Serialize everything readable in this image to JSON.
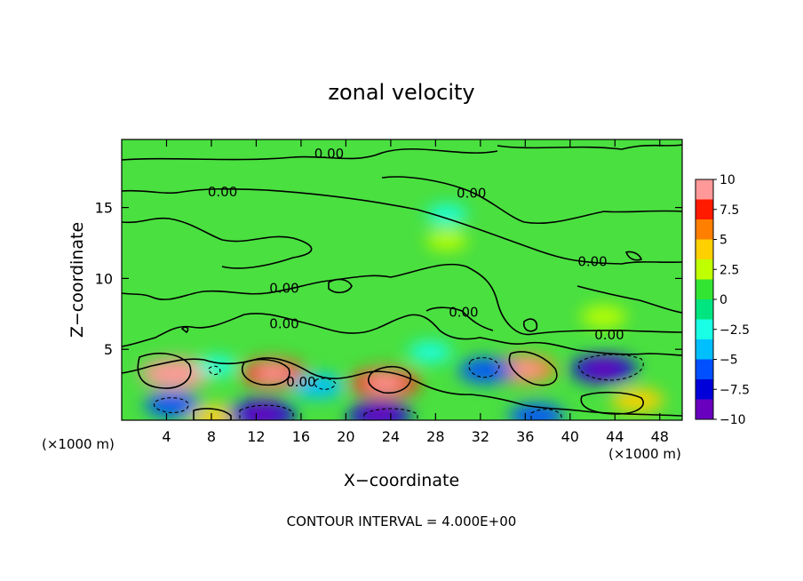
{
  "chart_data": {
    "type": "heatmap",
    "title": "zonal velocity",
    "xlabel": "X−coordinate",
    "ylabel": "Z−coordinate",
    "x_unit": "(×1000 m)",
    "x_unit_right": "(×1000 m)",
    "xlim": [
      0,
      50
    ],
    "ylim": [
      0,
      19.8
    ],
    "x_ticks": [
      4,
      8,
      12,
      16,
      20,
      24,
      28,
      32,
      36,
      40,
      44,
      48
    ],
    "y_ticks": [
      5,
      10,
      15
    ],
    "footer": "CONTOUR INTERVAL = 4.000E+00",
    "contour_label": "0.00",
    "contour_label_positions": [
      {
        "x": 18.5,
        "z": 18.8
      },
      {
        "x": 9.0,
        "z": 16.1
      },
      {
        "x": 31.2,
        "z": 16.0
      },
      {
        "x": 42.0,
        "z": 11.2
      },
      {
        "x": 14.5,
        "z": 9.3
      },
      {
        "x": 14.5,
        "z": 6.8
      },
      {
        "x": 30.5,
        "z": 7.6
      },
      {
        "x": 43.5,
        "z": 6.0
      },
      {
        "x": 16.0,
        "z": 2.7
      }
    ],
    "colorbar": {
      "min": -10,
      "max": 10,
      "tick_values": [
        10,
        7.5,
        5,
        2.5,
        0,
        -2.5,
        -5,
        -7.5,
        -10
      ],
      "tick_labels": [
        "10",
        "7.5",
        "5",
        "2.5",
        "0",
        "−2.5",
        "−5",
        "−7.5",
        "−10"
      ],
      "colors": [
        "#ff9999",
        "#ff1a00",
        "#ff7f00",
        "#ffd000",
        "#bfff00",
        "#33e533",
        "#00e57f",
        "#19ffe5",
        "#00bfff",
        "#0050ff",
        "#0000d8",
        "#6a00bf"
      ]
    },
    "features": [
      {
        "x": 4.8,
        "z": 3.3,
        "u": 8.5
      },
      {
        "x": 13.5,
        "z": 3.3,
        "u": 7
      },
      {
        "x": 23.5,
        "z": 2.6,
        "u": 8
      },
      {
        "x": 36.0,
        "z": 3.6,
        "u": 6.5
      },
      {
        "x": 46.0,
        "z": 1.4,
        "u": 4.5
      },
      {
        "x": 8.5,
        "z": 0.2,
        "u": 5
      },
      {
        "x": 29.0,
        "z": 12.7,
        "u": 2
      },
      {
        "x": 43.0,
        "z": 7.3,
        "u": 3
      },
      {
        "x": 4.5,
        "z": 1.1,
        "u": -5
      },
      {
        "x": 12.5,
        "z": 0.4,
        "u": -8
      },
      {
        "x": 17.5,
        "z": 2.4,
        "u": -4.5
      },
      {
        "x": 23.0,
        "z": 0.3,
        "u": -7
      },
      {
        "x": 32.5,
        "z": 3.5,
        "u": -5
      },
      {
        "x": 43.0,
        "z": 3.6,
        "u": -7.5
      },
      {
        "x": 37.0,
        "z": 0.3,
        "u": -5
      },
      {
        "x": 27.5,
        "z": 4.8,
        "u": -2.5
      },
      {
        "x": 8.5,
        "z": 3.8,
        "u": -2
      },
      {
        "x": 29.0,
        "z": 14.5,
        "u": -2
      }
    ]
  }
}
